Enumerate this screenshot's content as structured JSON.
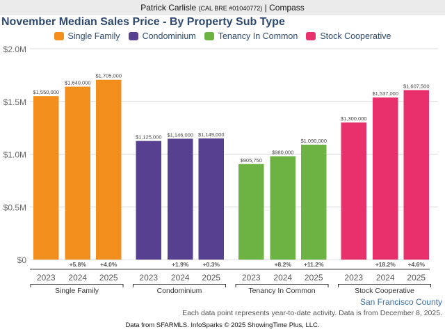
{
  "header": {
    "agent_name": "Patrick Carlisle",
    "license": "(CAL BRE #01040772)",
    "separator": "|",
    "brokerage": "Compass"
  },
  "footer": {
    "region": "San Francisco County",
    "note": "Each data point represents year-to-date activity. Data is from December 8, 2025.",
    "source": "Data from SFARMLS. InfoSparks © 2025 ShowingTime Plus, LLC."
  },
  "chart_data": {
    "type": "bar",
    "title": "November Median Sales Price - By Property Sub Type",
    "xlabel": "",
    "ylabel": "",
    "ylim": [
      0,
      2000000
    ],
    "yticks": [
      {
        "value": 0,
        "label": "$0"
      },
      {
        "value": 500000,
        "label": "$0.5M"
      },
      {
        "value": 1000000,
        "label": "$1.0M"
      },
      {
        "value": 1500000,
        "label": "$1.5M"
      },
      {
        "value": 2000000,
        "label": "$2.0M"
      }
    ],
    "grid": true,
    "legend_position": "top-center",
    "categories": [
      "2023",
      "2024",
      "2025"
    ],
    "series": [
      {
        "name": "Single Family",
        "color": "#f28e1c",
        "values": [
          1550000,
          1640000,
          1705000
        ],
        "value_labels": [
          "$1,550,000",
          "$1,640,000",
          "$1,705,000"
        ],
        "change_labels": [
          "",
          "+5.8%",
          "+4.0%"
        ]
      },
      {
        "name": "Condominium",
        "color": "#56408f",
        "values": [
          1125000,
          1146000,
          1149000
        ],
        "value_labels": [
          "$1,125,000",
          "$1,146,000",
          "$1,149,000"
        ],
        "change_labels": [
          "",
          "+1.9%",
          "+0.3%"
        ]
      },
      {
        "name": "Tenancy In Common",
        "color": "#6db344",
        "values": [
          905750,
          980000,
          1090000
        ],
        "value_labels": [
          "$905,750",
          "$980,000",
          "$1,090,000"
        ],
        "change_labels": [
          "",
          "+8.2%",
          "+11.2%"
        ]
      },
      {
        "name": "Stock Cooperative",
        "color": "#e8306d",
        "values": [
          1300000,
          1537000,
          1607500
        ],
        "value_labels": [
          "$1,300,000",
          "$1,537,000",
          "$1,607,500"
        ],
        "change_labels": [
          "",
          "+18.2%",
          "+4.6%"
        ]
      }
    ]
  }
}
